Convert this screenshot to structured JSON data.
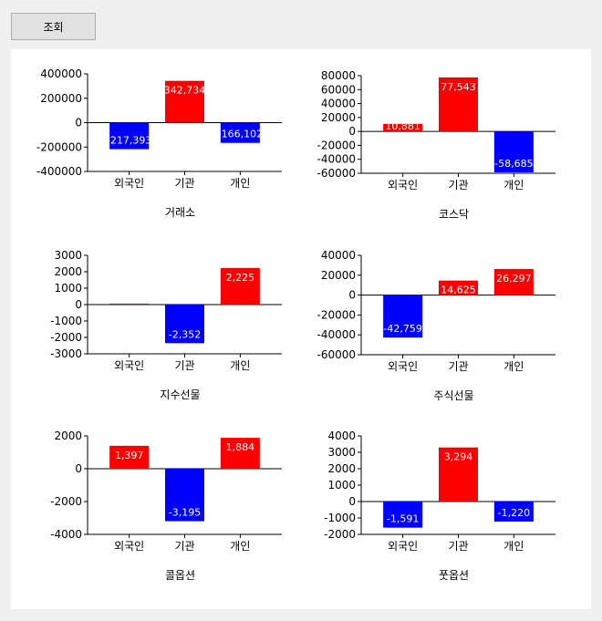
{
  "toolbar": {
    "query_label": "조회"
  },
  "colors": {
    "positive": "#ff0000",
    "negative": "#0000ff"
  },
  "chart_data": [
    {
      "type": "bar",
      "title": "거래소",
      "categories": [
        "외국인",
        "기관",
        "개인"
      ],
      "values": [
        -217393,
        342734,
        -166102
      ],
      "value_labels": [
        "-217,393",
        "342,734",
        "-166,102"
      ],
      "ylim": [
        -400000,
        400000
      ],
      "yticks": [
        400000,
        200000,
        0,
        -200000,
        -400000
      ]
    },
    {
      "type": "bar",
      "title": "코스닥",
      "categories": [
        "외국인",
        "기관",
        "개인"
      ],
      "values": [
        10881,
        77543,
        -58685
      ],
      "value_labels": [
        "10,881",
        "77,543",
        "-58,685"
      ],
      "ylim": [
        -60000,
        80000
      ],
      "yticks": [
        80000,
        60000,
        40000,
        20000,
        0,
        -20000,
        -40000,
        -60000
      ]
    },
    {
      "type": "bar",
      "title": "지수선물",
      "categories": [
        "외국인",
        "기관",
        "개인"
      ],
      "values": [
        60,
        -2352,
        2225
      ],
      "value_labels": [
        "",
        "-2,352",
        "2,225"
      ],
      "ylim": [
        -3000,
        3000
      ],
      "yticks": [
        3000,
        2000,
        1000,
        0,
        -1000,
        -2000,
        -3000
      ]
    },
    {
      "type": "bar",
      "title": "주식선물",
      "categories": [
        "외국인",
        "기관",
        "개인"
      ],
      "values": [
        -42759,
        14625,
        26297
      ],
      "value_labels": [
        "-42,759",
        "14,625",
        "26,297"
      ],
      "ylim": [
        -60000,
        40000
      ],
      "yticks": [
        40000,
        20000,
        0,
        -20000,
        -40000,
        -60000
      ]
    },
    {
      "type": "bar",
      "title": "콜옵션",
      "categories": [
        "외국인",
        "기관",
        "개인"
      ],
      "values": [
        1397,
        -3195,
        1884
      ],
      "value_labels": [
        "1,397",
        "-3,195",
        "1,884"
      ],
      "ylim": [
        -4000,
        2000
      ],
      "yticks": [
        2000,
        0,
        -2000,
        -4000
      ]
    },
    {
      "type": "bar",
      "title": "풋옵션",
      "categories": [
        "외국인",
        "기관",
        "개인"
      ],
      "values": [
        -1591,
        3294,
        -1220
      ],
      "value_labels": [
        "-1,591",
        "3,294",
        "-1,220"
      ],
      "ylim": [
        -2000,
        4000
      ],
      "yticks": [
        4000,
        3000,
        2000,
        1000,
        0,
        -1000,
        -2000
      ]
    }
  ]
}
